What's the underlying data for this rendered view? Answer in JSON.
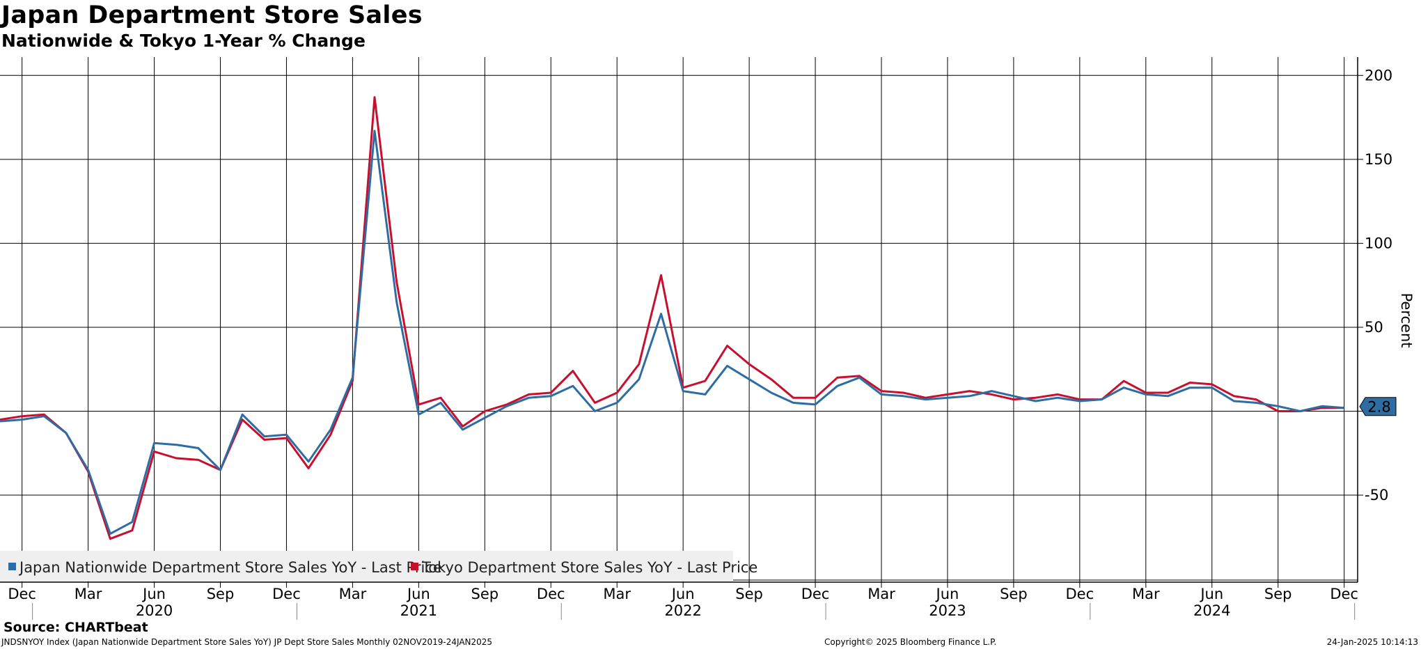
{
  "header": {
    "title": "Japan Department Store Sales",
    "subtitle": "Nationwide & Tokyo 1-Year % Change"
  },
  "footer": {
    "source": "Source: CHARTbeat",
    "left": "JNDSNYOY Index (Japan Nationwide Department Store Sales YoY) JP Dept Store Sales  Monthly 02NOV2019-24JAN2025",
    "center": "Copyright© 2025 Bloomberg Finance L.P.",
    "right": "24-Jan-2025 10:14:13"
  },
  "chart_data": {
    "type": "line",
    "ylabel": "Percent",
    "ylim": [
      -100,
      210
    ],
    "yticks": [
      200,
      150,
      100,
      50,
      -50
    ],
    "grid": true,
    "legend_position": "bottom-left",
    "x": [
      "2019-11",
      "2019-12",
      "2020-01",
      "2020-02",
      "2020-03",
      "2020-04",
      "2020-05",
      "2020-06",
      "2020-07",
      "2020-08",
      "2020-09",
      "2020-10",
      "2020-11",
      "2020-12",
      "2021-01",
      "2021-02",
      "2021-03",
      "2021-04",
      "2021-05",
      "2021-06",
      "2021-07",
      "2021-08",
      "2021-09",
      "2021-10",
      "2021-11",
      "2021-12",
      "2022-01",
      "2022-02",
      "2022-03",
      "2022-04",
      "2022-05",
      "2022-06",
      "2022-07",
      "2022-08",
      "2022-09",
      "2022-10",
      "2022-11",
      "2022-12",
      "2023-01",
      "2023-02",
      "2023-03",
      "2023-04",
      "2023-05",
      "2023-06",
      "2023-07",
      "2023-08",
      "2023-09",
      "2023-10",
      "2023-11",
      "2023-12",
      "2024-01",
      "2024-02",
      "2024-03",
      "2024-04",
      "2024-05",
      "2024-06",
      "2024-07",
      "2024-08",
      "2024-09",
      "2024-10",
      "2024-11",
      "2024-12"
    ],
    "x_tick_labels": [
      {
        "x": "2019-12",
        "label": "Dec"
      },
      {
        "x": "2020-03",
        "label": "Mar"
      },
      {
        "x": "2020-06",
        "label": "Jun"
      },
      {
        "x": "2020-09",
        "label": "Sep"
      },
      {
        "x": "2020-12",
        "label": "Dec"
      },
      {
        "x": "2021-03",
        "label": "Mar"
      },
      {
        "x": "2021-06",
        "label": "Jun"
      },
      {
        "x": "2021-09",
        "label": "Sep"
      },
      {
        "x": "2021-12",
        "label": "Dec"
      },
      {
        "x": "2022-03",
        "label": "Mar"
      },
      {
        "x": "2022-06",
        "label": "Jun"
      },
      {
        "x": "2022-09",
        "label": "Sep"
      },
      {
        "x": "2022-12",
        "label": "Dec"
      },
      {
        "x": "2023-03",
        "label": "Mar"
      },
      {
        "x": "2023-06",
        "label": "Jun"
      },
      {
        "x": "2023-09",
        "label": "Sep"
      },
      {
        "x": "2023-12",
        "label": "Dec"
      },
      {
        "x": "2024-03",
        "label": "Mar"
      },
      {
        "x": "2024-06",
        "label": "Jun"
      },
      {
        "x": "2024-09",
        "label": "Sep"
      },
      {
        "x": "2024-12",
        "label": "Dec"
      }
    ],
    "year_labels": [
      {
        "x": "2020-06",
        "label": "2020"
      },
      {
        "x": "2021-06",
        "label": "2021"
      },
      {
        "x": "2022-06",
        "label": "2022"
      },
      {
        "x": "2023-06",
        "label": "2023"
      },
      {
        "x": "2024-06",
        "label": "2024"
      }
    ],
    "series": [
      {
        "name": "Japan Nationwide Department Store Sales YoY - Last Price",
        "color": "#2e6ca4",
        "values": [
          -6,
          -5,
          -3,
          -13,
          -35,
          -73,
          -66,
          -19,
          -20,
          -22,
          -35,
          -2,
          -15,
          -14,
          -30,
          -11,
          20,
          167,
          65,
          -2,
          5,
          -11,
          -4,
          3,
          8,
          9,
          15,
          0,
          5,
          19,
          58,
          12,
          10,
          27,
          19,
          11,
          5,
          4,
          15,
          20,
          10,
          9,
          7,
          8,
          9,
          12,
          9,
          6,
          8,
          6,
          7,
          14,
          10,
          9,
          14,
          14,
          6,
          5,
          3,
          0,
          3,
          2
        ],
        "last_value_label": "2.8"
      },
      {
        "name": "Tokyo Department Store Sales YoY - Last Price",
        "color": "#c8102e",
        "values": [
          -5,
          -3,
          -2,
          -13,
          -36,
          -76,
          -71,
          -24,
          -28,
          -29,
          -35,
          -5,
          -17,
          -16,
          -34,
          -14,
          18,
          187,
          77,
          4,
          8,
          -9,
          0,
          4,
          10,
          11,
          24,
          5,
          11,
          28,
          81,
          14,
          18,
          39,
          28,
          19,
          8,
          8,
          20,
          21,
          12,
          11,
          8,
          10,
          12,
          10,
          7,
          8,
          10,
          7,
          7,
          18,
          11,
          11,
          17,
          16,
          9,
          7,
          0,
          0,
          2,
          2
        ]
      }
    ]
  }
}
